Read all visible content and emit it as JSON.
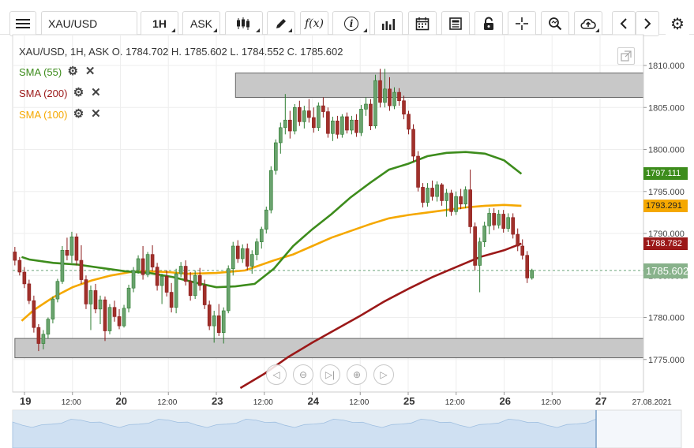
{
  "toolbar": {
    "symbol": "XAU/USD",
    "timeframe": "1H",
    "price_type": "ASK",
    "icons": [
      "menu-icon",
      "candlestick-icon",
      "draw-pencil-icon",
      "function-icon",
      "info-icon",
      "bar-chart-icon",
      "calendar-icon",
      "news-icon",
      "lock-icon",
      "crosshair-icon",
      "zoom-icon",
      "cloud-upload-icon",
      "chevron-left-icon",
      "chevron-right-icon",
      "gear-icon"
    ],
    "fx_label": "f(x)",
    "info_label": "i"
  },
  "legend": {
    "header": "XAU/USD, 1H, ASK    O. 1784.702 H. 1785.602 L. 1784.552 C. 1785.602"
  },
  "indicators": [
    {
      "label": "SMA (55)",
      "color": "#3d8c1c"
    },
    {
      "label": "SMA (200)",
      "color": "#9b1818"
    },
    {
      "label": "SMA (100)",
      "color": "#f5a800"
    }
  ],
  "price_tags": {
    "sma55": {
      "label": "1797.111",
      "color": "#3d8c1c"
    },
    "sma100": {
      "label": "1793.291",
      "color": "#f5a800"
    },
    "sma200": {
      "label": "1788.782",
      "color": "#9b1818"
    },
    "current": {
      "label": "1785.602",
      "color": "#88b28b"
    }
  },
  "chart_data": {
    "type": "candlestick",
    "symbol": "XAU/USD",
    "interval": "1H",
    "ohlc_last": {
      "open": 1784.702,
      "high": 1785.602,
      "low": 1784.552,
      "close": 1785.602
    },
    "y_ticks": [
      "1810.000",
      "1805.000",
      "1800.000",
      "1795.000",
      "1790.000",
      "1785.000",
      "1780.000",
      "1775.000"
    ],
    "ylim": [
      1771.5,
      1811.5
    ],
    "x_ticks": [
      {
        "label": "19",
        "x": 0.0,
        "major": true
      },
      {
        "label": "12:00",
        "x": 0.5,
        "major": false
      },
      {
        "label": "20",
        "x": 1.0,
        "major": true
      },
      {
        "label": "12:00",
        "x": 1.5,
        "major": false
      },
      {
        "label": "23",
        "x": 2.0,
        "major": true
      },
      {
        "label": "12:00",
        "x": 2.5,
        "major": false
      },
      {
        "label": "24",
        "x": 3.0,
        "major": true
      },
      {
        "label": "12:00",
        "x": 3.5,
        "major": false
      },
      {
        "label": "25",
        "x": 4.0,
        "major": true
      },
      {
        "label": "12:00",
        "x": 4.5,
        "major": false
      },
      {
        "label": "26",
        "x": 5.0,
        "major": true
      },
      {
        "label": "12:00",
        "x": 5.5,
        "major": false
      },
      {
        "label": "27",
        "x": 6.0,
        "major": true
      },
      {
        "label": "27.08.2021",
        "x": 6.45,
        "major": false
      }
    ],
    "zones": [
      {
        "from": 1806.2,
        "to": 1809.1,
        "x_start": 2.2
      },
      {
        "from": 1775.2,
        "to": 1777.5,
        "x_start": -0.1
      }
    ],
    "current_price": 1785.602,
    "candles_approx": [
      [
        1787.8,
        1788.4,
        1786.2,
        1786.8
      ],
      [
        1786.8,
        1787.2,
        1785.0,
        1785.4
      ],
      [
        1785.4,
        1786.0,
        1783.5,
        1784.0
      ],
      [
        1784.0,
        1784.5,
        1781.6,
        1782.0
      ],
      [
        1782.0,
        1782.6,
        1778.2,
        1778.8
      ],
      [
        1778.8,
        1779.2,
        1776.0,
        1776.9
      ],
      [
        1776.9,
        1778.5,
        1776.2,
        1778.0
      ],
      [
        1778.0,
        1780.0,
        1777.5,
        1779.8
      ],
      [
        1779.8,
        1782.5,
        1779.3,
        1782.2
      ],
      [
        1782.2,
        1784.6,
        1781.8,
        1784.3
      ],
      [
        1784.3,
        1788.5,
        1784.0,
        1788.0
      ],
      [
        1788.0,
        1789.5,
        1786.8,
        1787.4
      ],
      [
        1787.4,
        1790.2,
        1786.5,
        1789.6
      ],
      [
        1789.6,
        1790.0,
        1786.2,
        1786.8
      ],
      [
        1786.8,
        1788.6,
        1784.0,
        1784.5
      ],
      [
        1784.5,
        1785.0,
        1781.0,
        1781.6
      ],
      [
        1781.6,
        1783.8,
        1778.5,
        1783.2
      ],
      [
        1783.2,
        1784.0,
        1780.5,
        1781.0
      ],
      [
        1781.0,
        1782.6,
        1779.2,
        1782.1
      ],
      [
        1782.1,
        1782.5,
        1777.2,
        1778.4
      ],
      [
        1778.4,
        1781.6,
        1778.0,
        1781.2
      ],
      [
        1781.2,
        1782.0,
        1779.5,
        1780.1
      ],
      [
        1780.1,
        1781.0,
        1778.6,
        1779.0
      ],
      [
        1779.0,
        1781.5,
        1778.8,
        1781.1
      ],
      [
        1781.1,
        1783.9,
        1780.6,
        1783.5
      ],
      [
        1783.5,
        1786.0,
        1783.0,
        1785.6
      ],
      [
        1785.6,
        1787.4,
        1785.2,
        1787.0
      ],
      [
        1787.0,
        1788.5,
        1784.5,
        1785.1
      ],
      [
        1785.1,
        1787.8,
        1784.8,
        1787.5
      ],
      [
        1787.5,
        1788.6,
        1785.5,
        1786.0
      ],
      [
        1786.0,
        1786.5,
        1783.2,
        1783.8
      ],
      [
        1783.8,
        1785.2,
        1781.6,
        1784.9
      ],
      [
        1784.9,
        1785.6,
        1782.5,
        1783.0
      ],
      [
        1783.0,
        1784.1,
        1780.6,
        1781.2
      ],
      [
        1781.2,
        1785.8,
        1780.5,
        1785.2
      ],
      [
        1785.2,
        1786.6,
        1784.8,
        1786.1
      ],
      [
        1786.1,
        1786.8,
        1783.8,
        1784.3
      ],
      [
        1784.3,
        1785.4,
        1782.0,
        1782.6
      ],
      [
        1782.6,
        1785.6,
        1782.2,
        1785.0
      ],
      [
        1785.0,
        1785.9,
        1783.2,
        1783.8
      ],
      [
        1783.8,
        1784.5,
        1781.0,
        1781.5
      ],
      [
        1781.5,
        1782.0,
        1778.5,
        1779.0
      ],
      [
        1779.0,
        1780.8,
        1777.0,
        1780.2
      ],
      [
        1780.2,
        1781.6,
        1777.8,
        1778.2
      ],
      [
        1778.2,
        1781.2,
        1776.9,
        1780.8
      ],
      [
        1780.8,
        1786.2,
        1780.5,
        1785.8
      ],
      [
        1785.8,
        1789.0,
        1785.0,
        1788.5
      ],
      [
        1788.5,
        1789.2,
        1786.5,
        1787.0
      ],
      [
        1787.0,
        1788.7,
        1786.5,
        1788.2
      ],
      [
        1788.2,
        1788.8,
        1785.6,
        1786.1
      ],
      [
        1786.1,
        1788.0,
        1785.2,
        1787.5
      ],
      [
        1787.5,
        1789.4,
        1786.8,
        1789.0
      ],
      [
        1789.0,
        1790.8,
        1788.2,
        1790.5
      ],
      [
        1790.5,
        1793.2,
        1790.0,
        1792.8
      ],
      [
        1792.8,
        1798.0,
        1792.4,
        1797.5
      ],
      [
        1797.5,
        1801.2,
        1797.0,
        1800.8
      ],
      [
        1800.8,
        1803.2,
        1799.5,
        1802.6
      ],
      [
        1802.6,
        1806.6,
        1801.8,
        1803.5
      ],
      [
        1803.5,
        1804.6,
        1801.3,
        1802.2
      ],
      [
        1802.2,
        1805.4,
        1801.8,
        1805.0
      ],
      [
        1805.0,
        1805.8,
        1802.8,
        1803.3
      ],
      [
        1803.3,
        1805.2,
        1802.5,
        1804.6
      ],
      [
        1804.6,
        1806.0,
        1803.2,
        1803.8
      ],
      [
        1803.8,
        1805.0,
        1802.0,
        1802.6
      ],
      [
        1802.6,
        1805.6,
        1802.2,
        1805.2
      ],
      [
        1805.2,
        1806.2,
        1803.8,
        1804.5
      ],
      [
        1804.5,
        1805.0,
        1801.4,
        1801.9
      ],
      [
        1801.9,
        1803.9,
        1801.0,
        1803.4
      ],
      [
        1803.4,
        1804.0,
        1801.3,
        1801.8
      ],
      [
        1801.8,
        1804.2,
        1801.4,
        1803.9
      ],
      [
        1803.9,
        1804.4,
        1801.9,
        1802.3
      ],
      [
        1802.3,
        1804.0,
        1801.8,
        1803.5
      ],
      [
        1803.5,
        1804.2,
        1801.5,
        1802.0
      ],
      [
        1802.0,
        1805.3,
        1801.6,
        1804.8
      ],
      [
        1804.8,
        1806.2,
        1804.0,
        1805.4
      ],
      [
        1805.4,
        1806.0,
        1802.3,
        1802.8
      ],
      [
        1802.8,
        1808.9,
        1802.5,
        1808.2
      ],
      [
        1808.2,
        1809.6,
        1805.0,
        1805.6
      ],
      [
        1805.6,
        1809.6,
        1805.0,
        1807.2
      ],
      [
        1807.2,
        1808.6,
        1804.6,
        1805.2
      ],
      [
        1805.2,
        1807.4,
        1804.8,
        1806.8
      ],
      [
        1806.8,
        1807.3,
        1805.2,
        1805.8
      ],
      [
        1805.8,
        1806.4,
        1803.6,
        1804.2
      ],
      [
        1804.2,
        1804.6,
        1801.8,
        1802.4
      ],
      [
        1802.4,
        1803.0,
        1798.5,
        1799.2
      ],
      [
        1799.2,
        1799.8,
        1795.0,
        1795.5
      ],
      [
        1795.5,
        1796.0,
        1793.1,
        1793.7
      ],
      [
        1793.7,
        1796.0,
        1793.2,
        1795.4
      ],
      [
        1795.4,
        1796.3,
        1793.9,
        1794.4
      ],
      [
        1794.4,
        1796.2,
        1793.8,
        1795.8
      ],
      [
        1795.8,
        1796.0,
        1793.3,
        1793.9
      ],
      [
        1793.9,
        1795.3,
        1792.0,
        1794.8
      ],
      [
        1794.8,
        1795.2,
        1792.1,
        1792.6
      ],
      [
        1792.6,
        1795.0,
        1792.2,
        1794.4
      ],
      [
        1794.4,
        1795.3,
        1792.9,
        1793.5
      ],
      [
        1793.5,
        1795.6,
        1793.0,
        1795.2
      ],
      [
        1795.2,
        1797.6,
        1790.0,
        1790.8
      ],
      [
        1790.8,
        1791.3,
        1785.6,
        1786.2
      ],
      [
        1786.2,
        1789.5,
        1783.0,
        1789.0
      ],
      [
        1789.0,
        1791.4,
        1788.4,
        1790.9
      ],
      [
        1790.9,
        1793.0,
        1789.9,
        1792.4
      ],
      [
        1792.4,
        1793.0,
        1790.4,
        1791.0
      ],
      [
        1791.0,
        1792.8,
        1790.6,
        1792.3
      ],
      [
        1792.3,
        1792.8,
        1790.1,
        1790.6
      ],
      [
        1790.6,
        1792.4,
        1790.2,
        1791.9
      ],
      [
        1791.9,
        1792.4,
        1789.4,
        1789.9
      ],
      [
        1789.9,
        1790.6,
        1787.9,
        1788.5
      ],
      [
        1788.5,
        1789.3,
        1786.9,
        1787.4
      ],
      [
        1787.4,
        1787.9,
        1784.1,
        1784.7
      ],
      [
        1784.7,
        1785.8,
        1784.5,
        1785.6
      ]
    ],
    "sma55_path": [
      [
        -0.03,
        1787.2
      ],
      [
        0.05,
        1786.9
      ],
      [
        0.3,
        1786.5
      ],
      [
        0.55,
        1786.3
      ],
      [
        0.8,
        1785.9
      ],
      [
        1.05,
        1785.5
      ],
      [
        1.3,
        1785.3
      ],
      [
        1.55,
        1784.8
      ],
      [
        1.8,
        1784.1
      ],
      [
        2.0,
        1783.6
      ],
      [
        2.2,
        1783.7
      ],
      [
        2.4,
        1784.0
      ],
      [
        2.6,
        1785.8
      ],
      [
        2.8,
        1788.5
      ],
      [
        3.0,
        1790.5
      ],
      [
        3.2,
        1792.3
      ],
      [
        3.4,
        1794.3
      ],
      [
        3.6,
        1796.0
      ],
      [
        3.8,
        1797.6
      ],
      [
        4.0,
        1798.3
      ],
      [
        4.2,
        1799.2
      ],
      [
        4.4,
        1799.6
      ],
      [
        4.6,
        1799.7
      ],
      [
        4.8,
        1799.5
      ],
      [
        5.0,
        1798.7
      ],
      [
        5.18,
        1797.1
      ]
    ],
    "sma100_path": [
      [
        -0.03,
        1779.6
      ],
      [
        0.1,
        1780.9
      ],
      [
        0.3,
        1782.4
      ],
      [
        0.5,
        1783.6
      ],
      [
        0.7,
        1784.4
      ],
      [
        0.9,
        1785.0
      ],
      [
        1.1,
        1785.4
      ],
      [
        1.3,
        1785.5
      ],
      [
        1.5,
        1785.4
      ],
      [
        1.7,
        1785.2
      ],
      [
        2.0,
        1785.3
      ],
      [
        2.3,
        1785.6
      ],
      [
        2.6,
        1786.8
      ],
      [
        2.8,
        1787.5
      ],
      [
        3.0,
        1788.5
      ],
      [
        3.2,
        1789.5
      ],
      [
        3.4,
        1790.3
      ],
      [
        3.6,
        1791.1
      ],
      [
        3.8,
        1791.8
      ],
      [
        4.0,
        1792.2
      ],
      [
        4.2,
        1792.5
      ],
      [
        4.4,
        1792.8
      ],
      [
        4.6,
        1793.1
      ],
      [
        4.8,
        1793.3
      ],
      [
        5.0,
        1793.4
      ],
      [
        5.18,
        1793.3
      ]
    ],
    "sma200_path": [
      [
        2.25,
        1771.6
      ],
      [
        2.5,
        1773.3
      ],
      [
        2.75,
        1775.3
      ],
      [
        3.0,
        1777.0
      ],
      [
        3.25,
        1778.6
      ],
      [
        3.5,
        1780.2
      ],
      [
        3.75,
        1781.9
      ],
      [
        4.0,
        1783.4
      ],
      [
        4.25,
        1784.8
      ],
      [
        4.5,
        1786.0
      ],
      [
        4.75,
        1787.2
      ],
      [
        5.0,
        1788.0
      ],
      [
        5.18,
        1788.8
      ]
    ]
  }
}
